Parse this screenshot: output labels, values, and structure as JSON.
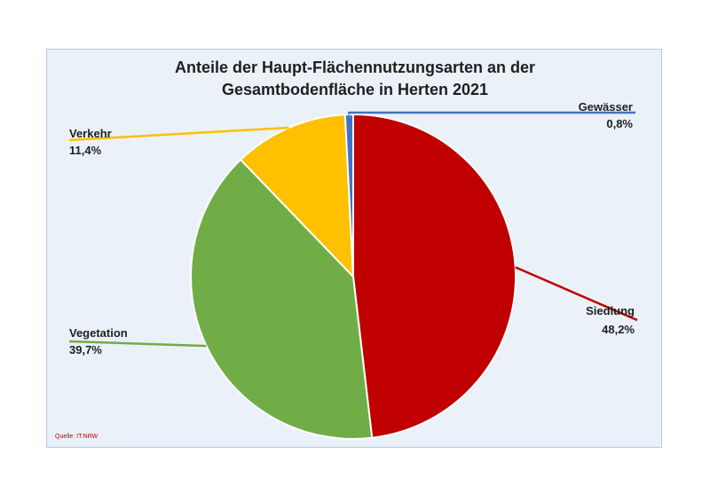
{
  "chart_data": {
    "type": "pie",
    "title_lines": [
      "Anteile der Haupt-Flächennutzungsarten an der",
      "Gesamtbodenfläche in Herten 2021"
    ],
    "slices": [
      {
        "name": "Siedlung",
        "value": 48.2,
        "display": "48,2%",
        "color": "#c00000"
      },
      {
        "name": "Vegetation",
        "value": 39.7,
        "display": "39,7%",
        "color": "#70ad47"
      },
      {
        "name": "Verkehr",
        "value": 11.4,
        "display": "11,4%",
        "color": "#ffc000"
      },
      {
        "name": "Gewässer",
        "value": 0.8,
        "display": "0,8%",
        "color": "#4472c4"
      }
    ],
    "source": "Quelle: IT.NRW"
  }
}
